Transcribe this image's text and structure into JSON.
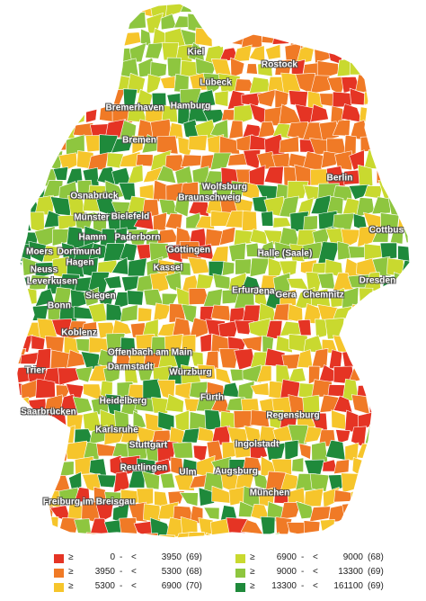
{
  "colors": {
    "red": "#e53424",
    "orange": "#f07a26",
    "yellow": "#f6c52b",
    "yellowgreen": "#c9d92f",
    "lightgreen": "#8ec63f",
    "darkgreen": "#1f8a3b"
  },
  "cities": [
    {
      "name": "Kiel"
    },
    {
      "name": "Rostock"
    },
    {
      "name": "Lübeck"
    },
    {
      "name": "Bremerhaven"
    },
    {
      "name": "Hamburg"
    },
    {
      "name": "Bremen"
    },
    {
      "name": "Wolfsburg"
    },
    {
      "name": "Berlin"
    },
    {
      "name": "Osnabrück"
    },
    {
      "name": "Braunschweig"
    },
    {
      "name": "Münster"
    },
    {
      "name": "Bielefeld"
    },
    {
      "name": "Cottbus"
    },
    {
      "name": "Hamm"
    },
    {
      "name": "Paderborn"
    },
    {
      "name": "Moers"
    },
    {
      "name": "Dortmund"
    },
    {
      "name": "Göttingen"
    },
    {
      "name": "Hagen"
    },
    {
      "name": "Halle (Saale)"
    },
    {
      "name": "Kassel"
    },
    {
      "name": "Neuss"
    },
    {
      "name": "Leverkusen"
    },
    {
      "name": "Dresden"
    },
    {
      "name": "Erfurt"
    },
    {
      "name": "Jena"
    },
    {
      "name": "Gera"
    },
    {
      "name": "Chemnitz"
    },
    {
      "name": "Siegen"
    },
    {
      "name": "Bonn"
    },
    {
      "name": "Koblenz"
    },
    {
      "name": "Offenbach am Main"
    },
    {
      "name": "Darmstadt"
    },
    {
      "name": "Trier"
    },
    {
      "name": "Würzburg"
    },
    {
      "name": "Saarbrücken"
    },
    {
      "name": "Fürth"
    },
    {
      "name": "Heidelberg"
    },
    {
      "name": "Regensburg"
    },
    {
      "name": "Karlsruhe"
    },
    {
      "name": "Stuttgart"
    },
    {
      "name": "Ingolstadt"
    },
    {
      "name": "Reutlingen"
    },
    {
      "name": "Ulm"
    },
    {
      "name": "Augsburg"
    },
    {
      "name": "München"
    },
    {
      "name": "Freiburg im Breisgau"
    }
  ],
  "legend": [
    {
      "color": "#e53424",
      "ge": "≥",
      "low": "0",
      "dash": "-",
      "lt": "<",
      "high": "3950",
      "count": "(69)"
    },
    {
      "color": "#f07a26",
      "ge": "≥",
      "low": "3950",
      "dash": "-",
      "lt": "<",
      "high": "5300",
      "count": "(68)"
    },
    {
      "color": "#f6c52b",
      "ge": "≥",
      "low": "5300",
      "dash": "-",
      "lt": "<",
      "high": "6900",
      "count": "(70)"
    },
    {
      "color": "#c9d92f",
      "ge": "≥",
      "low": "6900",
      "dash": "-",
      "lt": "<",
      "high": "9000",
      "count": "(68)"
    },
    {
      "color": "#8ec63f",
      "ge": "≥",
      "low": "9000",
      "dash": "-",
      "lt": "<",
      "high": "13300",
      "count": "(69)"
    },
    {
      "color": "#1f8a3b",
      "ge": "≥",
      "low": "13300",
      "dash": "-",
      "lt": "<",
      "high": "161100",
      "count": "(69)"
    }
  ]
}
